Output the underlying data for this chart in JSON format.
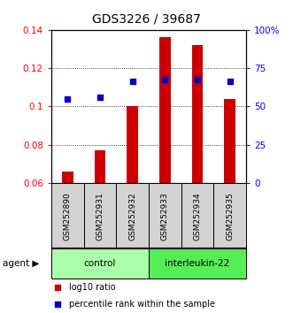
{
  "title": "GDS3226 / 39687",
  "samples": [
    "GSM252890",
    "GSM252931",
    "GSM252932",
    "GSM252933",
    "GSM252934",
    "GSM252935"
  ],
  "log10_ratio": [
    0.066,
    0.077,
    0.1,
    0.136,
    0.132,
    0.104
  ],
  "percentile_rank": [
    0.104,
    0.105,
    0.113,
    0.114,
    0.114,
    0.113
  ],
  "bar_bottom": 0.06,
  "ylim_left": [
    0.06,
    0.14
  ],
  "ylim_right": [
    0,
    100
  ],
  "yticks_left": [
    0.06,
    0.08,
    0.1,
    0.12,
    0.14
  ],
  "yticks_right": [
    0,
    25,
    50,
    75,
    100
  ],
  "ytick_labels_right": [
    "0",
    "25",
    "50",
    "75",
    "100%"
  ],
  "bar_color": "#cc0000",
  "dot_color": "#0000cc",
  "control_label": "control",
  "treatment_label": "interleukin-22",
  "agent_label": "agent",
  "control_color": "#aaffaa",
  "treatment_color": "#55ee55",
  "legend_bar_label": "log10 ratio",
  "legend_dot_label": "percentile rank within the sample",
  "title_fontsize": 10,
  "tick_fontsize": 7.5,
  "sample_fontsize": 6.5,
  "agent_fontsize": 7.5,
  "legend_fontsize": 7
}
